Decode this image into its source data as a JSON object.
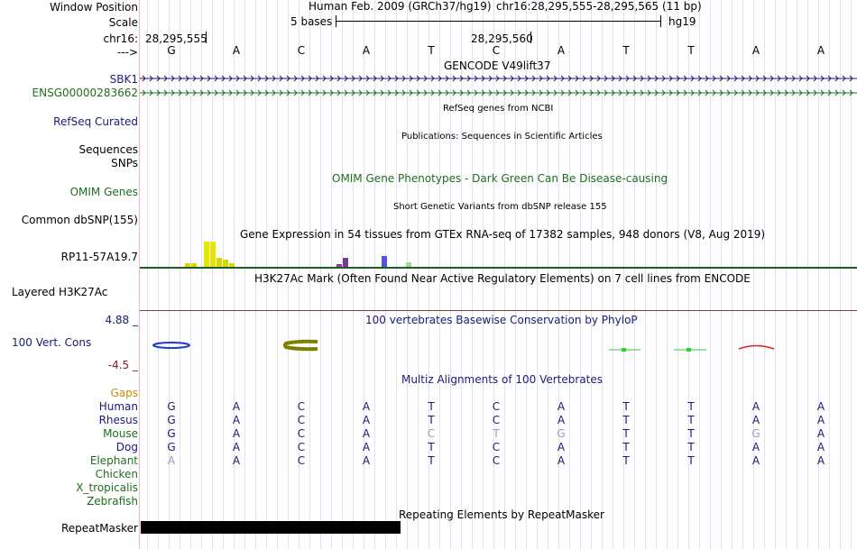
{
  "header": {
    "window_position_label": "Window Position",
    "scale_label": "Scale",
    "chrom_label": "chr16:",
    "arrow_label": "--->",
    "assembly": "Human Feb. 2009 (GRCh37/hg19)",
    "position": "chr16:28,295,555-28,295,565 (11 bp)",
    "scale_text": "5 bases",
    "db": "hg19",
    "coord_left": "28,295,555",
    "coord_mid": "28,295,560"
  },
  "bases": [
    "G",
    "A",
    "C",
    "A",
    "T",
    "C",
    "A",
    "T",
    "T",
    "A",
    "A"
  ],
  "tracks": {
    "gencode": {
      "title": "GENCODE V49lift37",
      "items": [
        "SBK1",
        "ENSG00000283662"
      ]
    },
    "refseq": {
      "label": "RefSeq Curated",
      "title": "RefSeq genes from NCBI"
    },
    "publications": {
      "label": "Sequences",
      "title": "Publications: Sequences in Scientific Articles"
    },
    "snps_label": "SNPs",
    "omim": {
      "label": "OMIM Genes",
      "title": "OMIM Gene Phenotypes - Dark Green Can Be Disease-causing"
    },
    "dbsnp": {
      "label": "Common dbSNP(155)",
      "title": "Short Genetic Variants from dbSNP release 155"
    },
    "gtex": {
      "label": "RP11-57A19.7",
      "title": "Gene Expression in 54 tissues from GTEx RNA-seq of 17382 samples, 948 donors (V8, Aug 2019)"
    },
    "h3k27ac": {
      "label": "Layered H3K27Ac",
      "title": "H3K27Ac Mark (Often Found Near Active Regulatory Elements) on 7 cell lines from ENCODE"
    },
    "cons": {
      "label": "100 Vert. Cons",
      "max": "4.88 _",
      "min": "-4.5 _",
      "title": "100 vertebrates Basewise Conservation by PhyloP"
    },
    "multiz": {
      "title": "Multiz Alignments of 100 Vertebrates",
      "gaps_label": "Gaps"
    },
    "repeatmasker": {
      "label": "RepeatMasker",
      "title": "Repeating Elements by RepeatMasker"
    }
  },
  "alignment": [
    {
      "species": "Human",
      "seq": [
        "G",
        "A",
        "C",
        "A",
        "T",
        "C",
        "A",
        "T",
        "T",
        "A",
        "A"
      ]
    },
    {
      "species": "Rhesus",
      "seq": [
        "G",
        "A",
        "C",
        "A",
        "T",
        "C",
        "A",
        "T",
        "T",
        "A",
        "A"
      ]
    },
    {
      "species": "Mouse",
      "seq": [
        "G",
        "A",
        "C",
        "A",
        "C",
        "T",
        "G",
        "T",
        "T",
        "G",
        "A"
      ]
    },
    {
      "species": "Dog",
      "seq": [
        "G",
        "A",
        "C",
        "A",
        "T",
        "C",
        "A",
        "T",
        "T",
        "A",
        "A"
      ]
    },
    {
      "species": "Elephant",
      "seq": [
        "A",
        "A",
        "C",
        "A",
        "T",
        "C",
        "A",
        "T",
        "T",
        "A",
        "A"
      ]
    },
    {
      "species": "Chicken",
      "seq": []
    },
    {
      "species": "X_tropicalis",
      "seq": []
    },
    {
      "species": "Zebrafish",
      "seq": []
    }
  ],
  "colors": {
    "navy": "#1a1a7a",
    "green": "#1e6e1e",
    "orange": "#d08a00",
    "maroon": "#8b1a1a",
    "blue": "#3a3ab0",
    "olive": "#808000",
    "gray_base": "#9a9abf"
  }
}
